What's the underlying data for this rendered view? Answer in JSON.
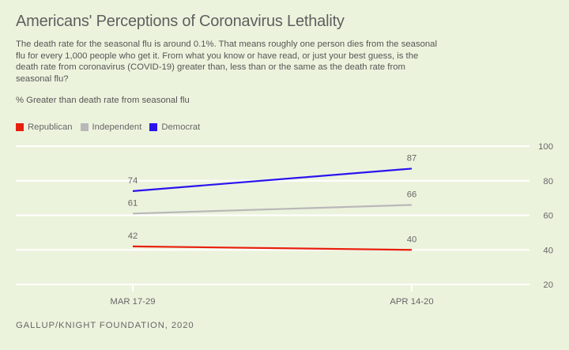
{
  "header": {
    "title": "Americans' Perceptions of Coronavirus Lethality",
    "subtitle": "The death rate for the seasonal flu is around 0.1%. That means roughly one person dies from the seasonal flu for every 1,000 people who get it. From what you know or have read, or just your best guess, is the death rate from coronavirus (COVID-19) greater than, less than or the same as the death rate from seasonal flu?",
    "measure": "% Greater than death rate from seasonal flu"
  },
  "footer": {
    "source": "GALLUP/KNIGHT FOUNDATION, 2020"
  },
  "chart_data": {
    "type": "line",
    "title": "Americans' Perceptions of Coronavirus Lethality",
    "xlabel": "",
    "ylabel": "% Greater than death rate from seasonal flu",
    "x": [
      "MAR 17-29",
      "APR 14-20"
    ],
    "ylim": [
      20,
      100
    ],
    "yticks": [
      20,
      40,
      60,
      80,
      100
    ],
    "grid": true,
    "y_axis_side": "right",
    "legend_position": "top-left",
    "series": [
      {
        "name": "Republican",
        "color": "#e8200e",
        "values": [
          42,
          40
        ]
      },
      {
        "name": "Independent",
        "color": "#b8b8b8",
        "values": [
          61,
          66
        ]
      },
      {
        "name": "Democrat",
        "color": "#2a14ee",
        "values": [
          74,
          87
        ]
      }
    ]
  }
}
